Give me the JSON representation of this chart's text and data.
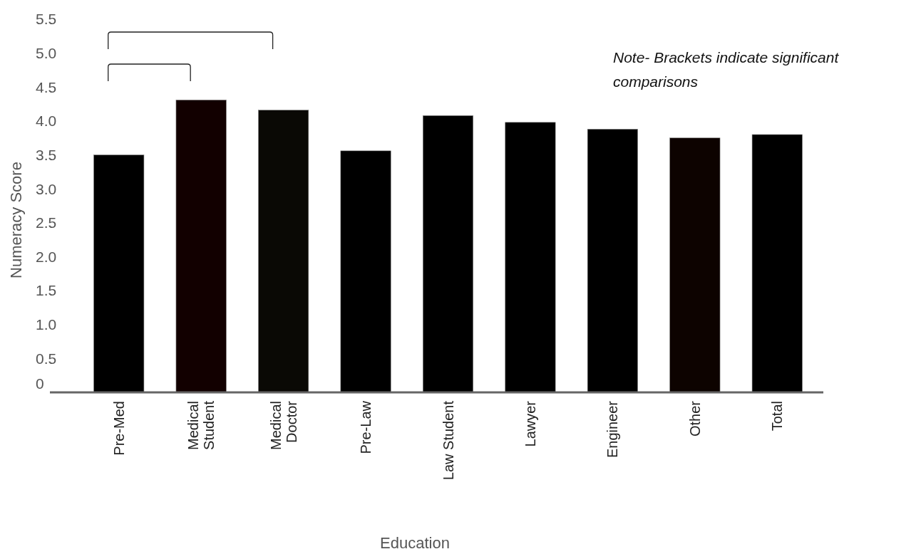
{
  "chart_data": {
    "type": "bar",
    "xlabel": "Education",
    "ylabel": "Numeracy Score",
    "categories": [
      "Pre-Med",
      "Medical Student",
      "Medical Doctor",
      "Pre-Law",
      "Law Student",
      "Lawyer",
      "Engineer",
      "Other",
      "Total"
    ],
    "values": [
      3.5,
      4.31,
      4.16,
      3.56,
      4.08,
      3.98,
      3.88,
      3.75,
      3.8
    ],
    "colors": [
      "#000000",
      "#120000",
      "#0a0905",
      "#000000",
      "#000000",
      "#000000",
      "#000000",
      "#0d0300",
      "#000000"
    ],
    "ylim": [
      0,
      5.5
    ],
    "yticks": [
      0,
      0.5,
      {
        "value": 1,
        "label": "1.0"
      },
      1.5,
      {
        "value": 2,
        "label": "2.0"
      },
      2.5,
      {
        "value": 3,
        "label": "3.0"
      },
      3.5,
      {
        "value": 4,
        "label": "4.0"
      },
      4.5,
      {
        "value": 5,
        "label": "5.0"
      },
      5.5
    ],
    "grid": false,
    "annotations": [
      "Note- Brackets indicate significant comparisons"
    ]
  }
}
